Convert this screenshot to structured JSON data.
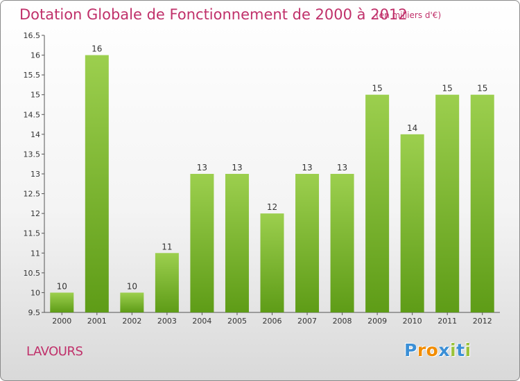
{
  "chart_data": {
    "type": "bar",
    "title": "Dotation Globale de Fonctionnement de 2000 à 2012",
    "subtitle": "(en milliers d'€)",
    "categories": [
      "2000",
      "2001",
      "2002",
      "2003",
      "2004",
      "2005",
      "2006",
      "2007",
      "2008",
      "2009",
      "2010",
      "2011",
      "2012"
    ],
    "values": [
      10,
      16,
      10,
      11,
      13,
      13,
      12,
      13,
      13,
      15,
      14,
      15,
      15
    ],
    "value_labels": [
      "10",
      "16",
      "10",
      "11",
      "13",
      "13",
      "12",
      "13",
      "13",
      "15",
      "14",
      "15",
      "15"
    ],
    "ylim": [
      9.5,
      16.5
    ],
    "yticks": [
      9.5,
      10,
      10.5,
      11,
      11.5,
      12,
      12.5,
      13,
      13.5,
      14,
      14.5,
      15,
      15.5,
      16,
      16.5
    ],
    "ytick_labels": [
      "9.5",
      "10",
      "10.5",
      "11",
      "11.5",
      "12",
      "12.5",
      "13",
      "13.5",
      "14",
      "14.5",
      "15",
      "15.5",
      "16",
      "16.5"
    ],
    "xlabel": "",
    "ylabel": "",
    "grid": false,
    "colors": {
      "bar_top": "#9ccf4e",
      "bar_bottom": "#5e9c17",
      "title": "#c0306a"
    }
  },
  "commune": "LAVOURS",
  "logo": {
    "letters": [
      "P",
      "r",
      "o",
      "x",
      "i",
      "t",
      "i"
    ],
    "colors": [
      "#3b8fd6",
      "#f28c00",
      "#f28c00",
      "#3b8fd6",
      "#9bc23b",
      "#3b8fd6",
      "#9bc23b"
    ]
  }
}
